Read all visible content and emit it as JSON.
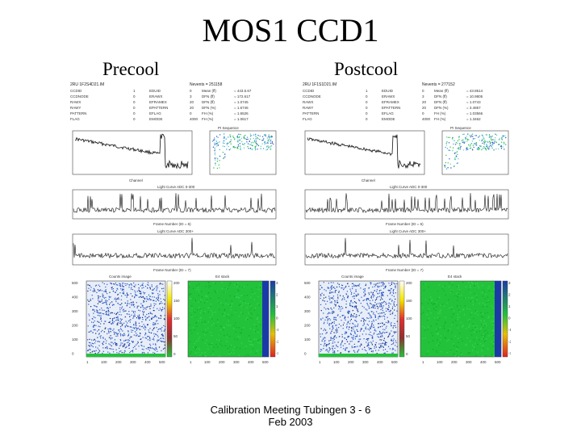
{
  "slide": {
    "title": "MOS1 CCD1",
    "footer_line1": "Calibration Meeting Tubingen 3 - 6",
    "footer_line2": "Feb 2003"
  },
  "panels": [
    {
      "label": "Precool",
      "header_left": "2RU 1F2S4D21.IM",
      "header_right": "Nevents = 251158",
      "stats_left": [
        {
          "key": "CCDID",
          "val": "1"
        },
        {
          "key": "CCDNODE",
          "val": "0"
        },
        {
          "key": "RAWX",
          "val": "0"
        },
        {
          "key": "RAWY",
          "val": "0"
        },
        {
          "key": "PATTERN",
          "val": "0"
        },
        {
          "key": "FLAG",
          "val": "0"
        }
      ],
      "stats_mid": [
        {
          "key": "EDUID",
          "val": "0"
        },
        {
          "key": "ERAWX",
          "val": "3"
        },
        {
          "key": "EFRAMEX",
          "val": "20"
        },
        {
          "key": "EPATTERN",
          "val": "20"
        },
        {
          "key": "EFLAG",
          "val": "0"
        },
        {
          "key": "EMODE",
          "val": "4000"
        }
      ],
      "stats_right": [
        {
          "key": "Mean (ff)",
          "val": "= 443.5.67"
        },
        {
          "key": "DFN (ff)",
          "val": "= 172.617"
        },
        {
          "key": "DFN (ff)",
          "val": "= 1.0745"
        },
        {
          "key": "DFN (%)",
          "val": "= 1.6746"
        },
        {
          "key": "FH (%)",
          "val": "= 1.6526"
        },
        {
          "key": "FH (%)",
          "val": "= 1.0617"
        }
      ],
      "spec_xlabel": "Channel",
      "scatter_title": "PI Sequence",
      "lc1_title": "Light Curve ADC 0-300",
      "lc1_xlabel": "Frame Number (ID = 6)",
      "lc2_title": "Light Curve ADC 300+",
      "lc2_xlabel": "Frame Number (ID = 7)",
      "image_left_title": "Counts image",
      "image_right_title": "E4 stack",
      "y_ticks": [
        "500",
        "400",
        "300",
        "200",
        "100",
        "0"
      ],
      "x_ticks": [
        "1",
        "100",
        "200",
        "300",
        "400",
        "500"
      ],
      "colorbar_ticks": [
        "200",
        "150",
        "100",
        "50",
        "0"
      ],
      "colorbar_ticks_right": [
        "3",
        "2",
        "1",
        "0",
        "-1",
        "-2",
        "-3"
      ]
    },
    {
      "label": "Postcool",
      "header_left": "2RU 1F1S1D21.IM",
      "header_right": "Nevents = 277152",
      "stats_left": [
        {
          "key": "CCDID",
          "val": "1"
        },
        {
          "key": "CCDNODE",
          "val": "0"
        },
        {
          "key": "RAWX",
          "val": "0"
        },
        {
          "key": "RAWY",
          "val": "0"
        },
        {
          "key": "PATTERN",
          "val": "0"
        },
        {
          "key": "FLAG",
          "val": "0"
        }
      ],
      "stats_mid": [
        {
          "key": "EDUID",
          "val": "0"
        },
        {
          "key": "ERAWX",
          "val": "3"
        },
        {
          "key": "EFRAMEX",
          "val": "20"
        },
        {
          "key": "EPATTERN",
          "val": "20"
        },
        {
          "key": "EFLAG",
          "val": "0"
        },
        {
          "key": "EMODE",
          "val": "4000"
        }
      ],
      "stats_right": [
        {
          "key": "Mean (ff)",
          "val": "= 43.8514"
        },
        {
          "key": "DFN (ff)",
          "val": "= 10.9805"
        },
        {
          "key": "DFN (ff)",
          "val": "= 1.0743"
        },
        {
          "key": "DFN (%)",
          "val": "= 3.4857"
        },
        {
          "key": "FH (%)",
          "val": "= 1.03566"
        },
        {
          "key": "FH (%)",
          "val": "= 1.3462"
        }
      ],
      "spec_xlabel": "Channel",
      "scatter_title": "PI Sequence",
      "lc1_title": "Light Curve ADC 0-300",
      "lc1_xlabel": "Frame Number (ID = 6)",
      "lc2_title": "Light Curve ADC 300+",
      "lc2_xlabel": "Frame Number (ID = 7)",
      "image_left_title": "Counts image",
      "image_right_title": "E4 stack",
      "y_ticks": [
        "500",
        "400",
        "300",
        "200",
        "100",
        "0"
      ],
      "x_ticks": [
        "1",
        "100",
        "200",
        "300",
        "400",
        "500"
      ],
      "colorbar_ticks": [
        "200",
        "150",
        "100",
        "50",
        "0"
      ],
      "colorbar_ticks_right": [
        "3",
        "2",
        "1",
        "0",
        "-1",
        "-2",
        "-3"
      ]
    }
  ],
  "colors": {
    "background": "#ffffff",
    "text": "#000000",
    "image_noise_blue": "#2a57c8",
    "image_green": "#22c33a"
  }
}
